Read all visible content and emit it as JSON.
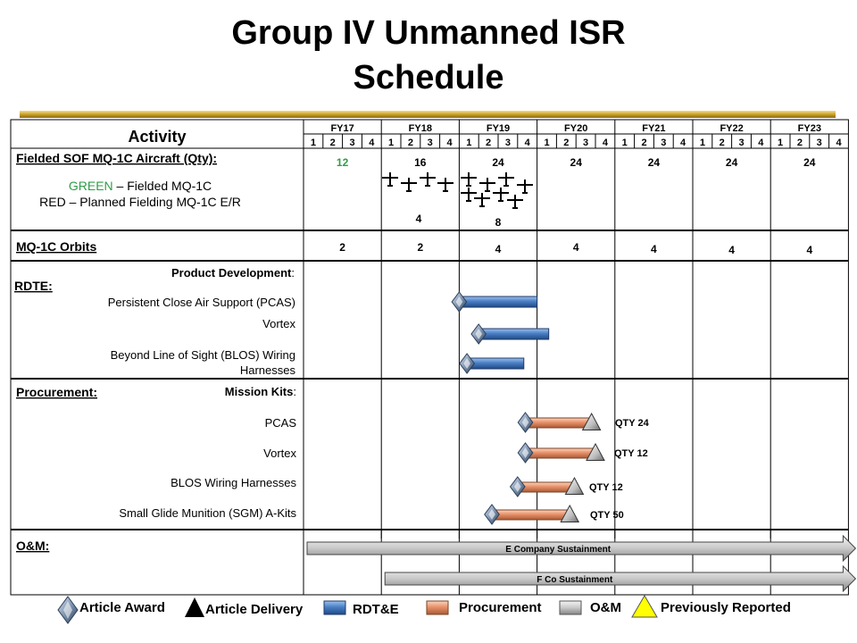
{
  "title_line1": "Group IV Unmanned ISR",
  "title_line2": "Schedule",
  "activity_header": "Activity",
  "fiscal_years": [
    "FY17",
    "FY18",
    "FY19",
    "FY20",
    "FY21",
    "FY22",
    "FY23"
  ],
  "quarters": [
    "1",
    "2",
    "3",
    "4"
  ],
  "fielded": {
    "heading": "Fielded SOF MQ-1C Aircraft (Qty):",
    "green_word": "GREEN",
    "green_rest": " – Fielded MQ-1C",
    "red_line": "RED – Planned Fielding MQ-1C E/R",
    "quantities": [
      "12",
      "16",
      "24",
      "24",
      "24",
      "24",
      "24"
    ],
    "sub_fy18": "4",
    "sub_fy19": "8",
    "colors": {
      "green": "#2e9e47"
    }
  },
  "orbits": {
    "heading": "MQ-1C Orbits",
    "values": [
      "2",
      "2",
      "4",
      "4",
      "4",
      "4",
      "4"
    ]
  },
  "rdte": {
    "heading": "RDTE:",
    "sub_label": "Product Development",
    "colon": ":",
    "items": [
      {
        "label": "Persistent Close Air Support (PCAS)",
        "start": 2.0,
        "end": 3.0
      },
      {
        "label": "Vortex",
        "start": 2.25,
        "end": 3.15
      },
      {
        "label": "Beyond Line of Sight (BLOS) Wiring",
        "label2": "Harnesses",
        "start": 2.1,
        "end": 2.83
      }
    ]
  },
  "procurement": {
    "heading": "Procurement:",
    "sub_label": "Mission Kits",
    "colon": ":",
    "items": [
      {
        "label": "PCAS",
        "start": 2.85,
        "end": 3.7,
        "qty": "QTY  24"
      },
      {
        "label": "Vortex",
        "start": 2.85,
        "end": 3.75,
        "qty": "QTY  12"
      },
      {
        "label": "BLOS  Wiring Harnesses",
        "start": 2.75,
        "end": 3.48,
        "qty": "QTY  12"
      },
      {
        "label": "Small Glide Munition (SGM) A-Kits",
        "start": 2.42,
        "end": 3.42,
        "qty": "QTY  50"
      }
    ]
  },
  "om": {
    "heading": "O&M:",
    "bars": [
      {
        "label": "E Company Sustainment",
        "start": 0.0,
        "end": 7.0
      },
      {
        "label": "F Co Sustainment",
        "start": 1.0,
        "end": 7.0
      }
    ]
  },
  "legend": {
    "award": "Article Award",
    "delivery": "Article Delivery",
    "rdte": "RDT&E",
    "procurement": "Procurement",
    "om": "O&M",
    "previous": "Previously Reported"
  },
  "colors": {
    "gold": "#c9a227",
    "rdte_fill": "#4a7fc4",
    "proc_fill": "#e8916a",
    "om_fill": "#c8c8c8",
    "diamond": "#7f95b0",
    "previous": "#ffff00"
  }
}
